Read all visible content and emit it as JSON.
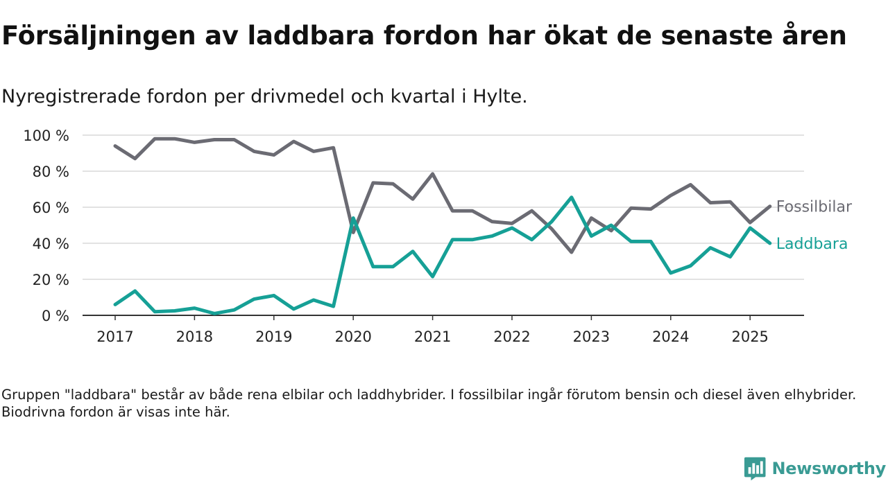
{
  "title": "Försäljningen av laddbara fordon har ökat de senaste åren",
  "subtitle": "Nyregistrerade fordon per drivmedel och kvartal i Hylte.",
  "note": "Gruppen \"laddbara\" består av både rena elbilar och laddhybrider. I fossilbilar ingår förutom bensin och diesel även elhybrider. Biodrivna fordon är visas inte här.",
  "brand": {
    "name": "Newsworthy",
    "icon": "newsworthy-logo-icon",
    "color": "#3a9b94"
  },
  "colors": {
    "fossil": "#6b6b73",
    "laddbara": "#16a096",
    "grid": "#d9d9d9",
    "axis": "#333333",
    "text": "#222222"
  },
  "chart_data": {
    "type": "line",
    "x_start": "2017 Q1",
    "x": [
      "2017 Q1",
      "2017 Q2",
      "2017 Q3",
      "2017 Q4",
      "2018 Q1",
      "2018 Q2",
      "2018 Q3",
      "2018 Q4",
      "2019 Q1",
      "2019 Q2",
      "2019 Q3",
      "2019 Q4",
      "2020 Q1",
      "2020 Q2",
      "2020 Q3",
      "2020 Q4",
      "2021 Q1",
      "2021 Q2",
      "2021 Q3",
      "2021 Q4",
      "2022 Q1",
      "2022 Q2",
      "2022 Q3",
      "2022 Q4",
      "2023 Q1",
      "2023 Q2",
      "2023 Q3",
      "2023 Q4",
      "2024 Q1",
      "2024 Q2",
      "2024 Q3",
      "2024 Q4",
      "2025 Q1",
      "2025 Q2"
    ],
    "x_ticks": [
      "2017",
      "2018",
      "2019",
      "2020",
      "2021",
      "2022",
      "2023",
      "2024",
      "2025"
    ],
    "y_ticks": [
      "0 %",
      "20 %",
      "40 %",
      "60 %",
      "80 %",
      "100 %"
    ],
    "ylim": [
      0,
      100
    ],
    "grid": true,
    "legend": "direct labels at line ends",
    "series": [
      {
        "name": "Fossilbilar",
        "key": "fossil",
        "values": [
          94,
          87,
          98,
          98,
          96,
          97.5,
          97.5,
          91,
          89,
          96.5,
          91,
          93,
          46,
          73.5,
          73,
          64.5,
          78.5,
          58,
          58,
          52,
          51,
          58,
          48,
          35,
          54,
          47,
          59.5,
          59,
          66.5,
          72.5,
          62.5,
          63,
          51.5,
          60.5
        ]
      },
      {
        "name": "Laddbara",
        "key": "laddbara",
        "values": [
          6,
          13.5,
          2,
          2.5,
          4,
          1,
          3,
          9,
          11,
          3.5,
          8.5,
          5,
          54,
          27,
          27,
          35.5,
          21.5,
          42,
          42,
          44,
          48.5,
          42,
          52,
          65.5,
          44,
          50,
          41,
          41,
          23.5,
          27.5,
          37.5,
          32.5,
          48.5,
          40
        ]
      }
    ]
  }
}
